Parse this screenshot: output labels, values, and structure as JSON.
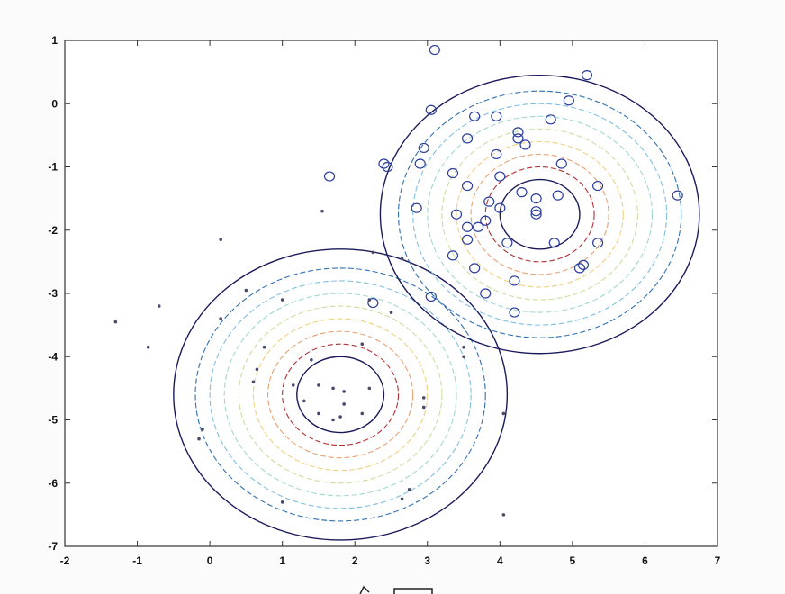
{
  "chart_data": {
    "type": "scatter",
    "title": "",
    "xlabel": "",
    "ylabel": "",
    "xlim": [
      -2,
      7
    ],
    "ylim": [
      -7,
      1
    ],
    "x_ticks": [
      "-2",
      "-1",
      "0",
      "1",
      "2",
      "3",
      "4",
      "5",
      "6",
      "7"
    ],
    "y_ticks": [
      "1",
      "0",
      "-1",
      "-2",
      "-3",
      "-4",
      "-5",
      "-6",
      "-7"
    ],
    "grid": false,
    "legend": "none",
    "series": [
      {
        "marker": "circle",
        "color": "#2c3e9c",
        "points": [
          [
            3.1,
            0.85
          ],
          [
            5.2,
            0.45
          ],
          [
            4.95,
            0.05
          ],
          [
            3.05,
            -0.1
          ],
          [
            3.65,
            -0.2
          ],
          [
            3.95,
            -0.2
          ],
          [
            4.7,
            -0.25
          ],
          [
            4.25,
            -0.45
          ],
          [
            4.25,
            -0.55
          ],
          [
            4.35,
            -0.65
          ],
          [
            3.55,
            -0.55
          ],
          [
            2.95,
            -0.7
          ],
          [
            2.9,
            -0.95
          ],
          [
            2.4,
            -0.95
          ],
          [
            2.45,
            -1.0
          ],
          [
            1.65,
            -1.15
          ],
          [
            3.95,
            -0.8
          ],
          [
            4.85,
            -0.95
          ],
          [
            3.35,
            -1.1
          ],
          [
            4.0,
            -1.15
          ],
          [
            3.55,
            -1.3
          ],
          [
            5.35,
            -1.3
          ],
          [
            4.3,
            -1.4
          ],
          [
            4.5,
            -1.5
          ],
          [
            4.8,
            -1.45
          ],
          [
            3.85,
            -1.55
          ],
          [
            4.0,
            -1.65
          ],
          [
            4.5,
            -1.7
          ],
          [
            4.5,
            -1.75
          ],
          [
            6.45,
            -1.45
          ],
          [
            2.85,
            -1.65
          ],
          [
            3.4,
            -1.75
          ],
          [
            3.8,
            -1.85
          ],
          [
            3.7,
            -1.95
          ],
          [
            3.55,
            -1.95
          ],
          [
            3.55,
            -2.15
          ],
          [
            4.1,
            -2.2
          ],
          [
            4.75,
            -2.2
          ],
          [
            5.35,
            -2.2
          ],
          [
            3.35,
            -2.4
          ],
          [
            3.65,
            -2.6
          ],
          [
            5.15,
            -2.55
          ],
          [
            5.1,
            -2.6
          ],
          [
            4.2,
            -2.8
          ],
          [
            3.8,
            -3.0
          ],
          [
            3.05,
            -3.05
          ],
          [
            2.25,
            -3.15
          ],
          [
            4.2,
            -3.3
          ]
        ]
      },
      {
        "marker": "dot",
        "color": "#4a4a6a",
        "points": [
          [
            1.55,
            -1.7
          ],
          [
            0.15,
            -2.15
          ],
          [
            2.25,
            -2.35
          ],
          [
            2.65,
            -2.45
          ],
          [
            0.5,
            -2.95
          ],
          [
            -0.7,
            -3.2
          ],
          [
            -1.3,
            -3.45
          ],
          [
            0.15,
            -3.4
          ],
          [
            1.0,
            -3.1
          ],
          [
            2.2,
            -3.1
          ],
          [
            2.5,
            -3.3
          ],
          [
            -0.85,
            -3.85
          ],
          [
            0.75,
            -3.85
          ],
          [
            1.4,
            -4.05
          ],
          [
            2.1,
            -3.8
          ],
          [
            3.5,
            -3.85
          ],
          [
            3.5,
            -4.0
          ],
          [
            0.65,
            -4.2
          ],
          [
            0.6,
            -4.4
          ],
          [
            1.15,
            -4.45
          ],
          [
            1.5,
            -4.45
          ],
          [
            1.7,
            -4.5
          ],
          [
            1.85,
            -4.55
          ],
          [
            2.2,
            -4.5
          ],
          [
            1.3,
            -4.7
          ],
          [
            1.85,
            -4.75
          ],
          [
            1.5,
            -4.9
          ],
          [
            1.8,
            -4.95
          ],
          [
            1.7,
            -5.0
          ],
          [
            2.1,
            -4.9
          ],
          [
            2.95,
            -4.65
          ],
          [
            2.95,
            -4.8
          ],
          [
            4.05,
            -4.9
          ],
          [
            -0.1,
            -5.15
          ],
          [
            -0.15,
            -5.3
          ],
          [
            2.75,
            -6.1
          ],
          [
            2.65,
            -6.25
          ],
          [
            1.0,
            -6.3
          ],
          [
            4.05,
            -6.5
          ]
        ]
      }
    ],
    "contour_groups": [
      {
        "center": [
          1.8,
          -4.6
        ],
        "radii": [
          0.6,
          0.8,
          1.0,
          1.2,
          1.4,
          1.6,
          1.8,
          2.0,
          2.3
        ]
      },
      {
        "center": [
          4.55,
          -1.75
        ],
        "radii": [
          0.55,
          0.75,
          0.95,
          1.15,
          1.35,
          1.55,
          1.75,
          1.95,
          2.2
        ]
      }
    ],
    "contour_colors": [
      "#1a1a5a",
      "#b03030",
      "#e8a070",
      "#f0d080",
      "#c8e0a0",
      "#a0d8d0",
      "#80c0e0",
      "#3070b0",
      "#1a1a5a"
    ]
  }
}
